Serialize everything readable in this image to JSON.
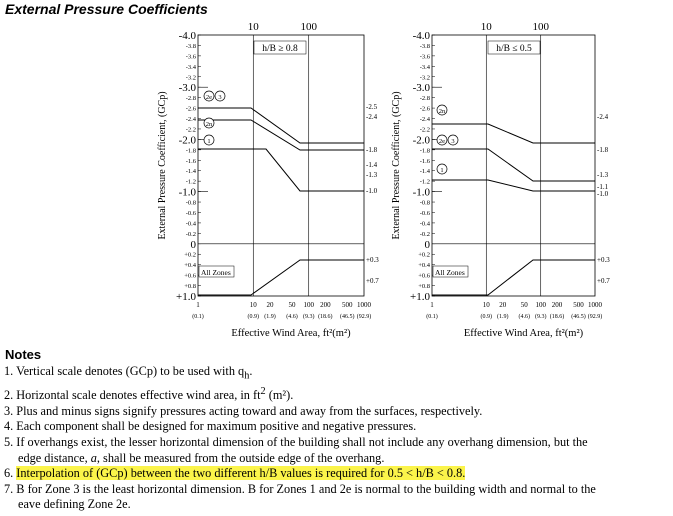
{
  "title": "External Pressure Coefficients",
  "charts": [
    {
      "ratio_label": "h/B ≥ 0.8",
      "ylabel": "External Pressure Coefficient, (GCp)",
      "xlabel": "Effective Wind Area, ft²(m²)",
      "top_ticks": [
        "10",
        "100"
      ],
      "x_ticks_ft": [
        "1",
        "10",
        "20",
        "50",
        "100",
        "200",
        "500",
        "1000"
      ],
      "x_ticks_m": [
        "(0.1)",
        "(0.9)",
        "(1.9)",
        "(4.6)",
        "(9.3)",
        "(18.6)",
        "(46.5)",
        "(92.9)"
      ],
      "zone_labels": [
        "2e 3",
        "2n",
        "1"
      ],
      "right_labels": [
        "-2.5",
        "-2.4",
        "-1.8",
        "-1.4",
        "-1.3",
        "-1.0",
        "+0.3",
        "+0.7"
      ],
      "all_zones_label": "All Zones"
    },
    {
      "ratio_label": "h/B ≤ 0.5",
      "ylabel": "External Pressure Coefficient, (GCp)",
      "xlabel": "Effective Wind Area, ft²(m²)",
      "top_ticks": [
        "10",
        "100"
      ],
      "x_ticks_ft": [
        "1",
        "10",
        "20",
        "50",
        "100",
        "200",
        "500",
        "1000"
      ],
      "x_ticks_m": [
        "(0.1)",
        "(0.9)",
        "(1.9)",
        "(4.6)",
        "(9.3)",
        "(18.6)",
        "(46.5)",
        "(92.9)"
      ],
      "zone_labels": [
        "2n",
        "2e 3",
        "1"
      ],
      "right_labels": [
        "-2.4",
        "-1.8",
        "-1.3",
        "-1.1",
        "-1.0",
        "+0.3",
        "+0.7"
      ],
      "all_zones_label": "All Zones"
    }
  ],
  "y_ticks": [
    "-4.0",
    "-3.8",
    "-3.6",
    "-3.4",
    "-3.2",
    "-3.0",
    "-2.8",
    "-2.6",
    "-2.4",
    "-2.2",
    "-2.0",
    "-1.8",
    "-1.6",
    "-1.4",
    "-1.2",
    "-1.0",
    "-0.8",
    "-0.6",
    "-0.4",
    "-0.2",
    "0",
    "+0.2",
    "+0.4",
    "+0.6",
    "+0.8",
    "+1.0"
  ],
  "notes_heading": "Notes",
  "notes": {
    "n1_pre": "1. Vertical scale denotes (GCp) to be used with q",
    "n1_sub": "h",
    "n1_post": ".",
    "n2_pre": "2. Horizontal scale denotes effective wind area, in ft",
    "n2_sup": "2",
    "n2_post": " (m²).",
    "n3": "3. Plus and minus signs signify pressures acting toward and away from the surfaces, respectively.",
    "n4": "4. Each component shall be designed for maximum positive and negative pressures.",
    "n5_line1": "5. If overhangs exist, the lesser horizontal dimension of the building shall not include any overhang dimension, but the",
    "n5_line2_pre": "edge distance, ",
    "n5_line2_a": "a",
    "n5_line2_post": ", shall be measured from the outside edge of the overhang.",
    "n6_num": "6. ",
    "n6_highlight": "Interpolation of (GCp) between the two different h/B values is required for 0.5 < h/B < 0.8.",
    "n7_line1": "7. B for Zone 3 is the least horizontal dimension. B for Zones 1 and 2e is normal to the building width and normal to the",
    "n7_line2": "eave defining Zone 2e."
  }
}
